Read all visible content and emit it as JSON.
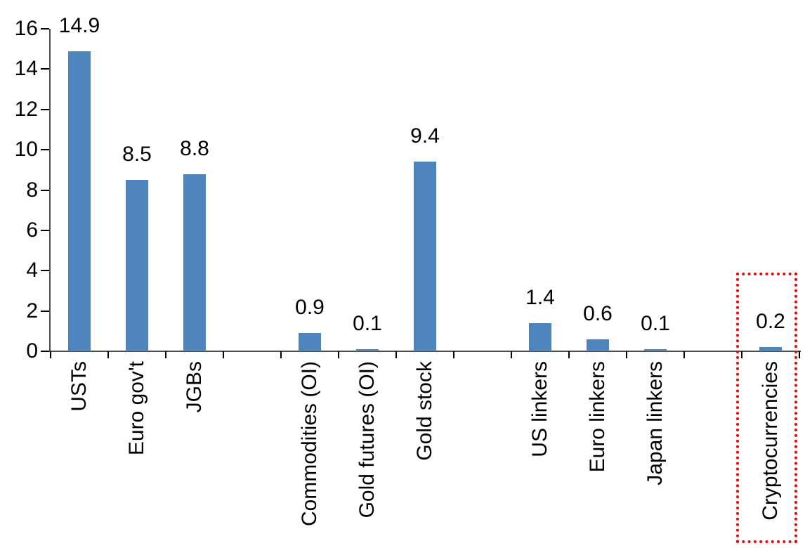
{
  "chart_data": {
    "type": "bar",
    "title": "",
    "xlabel": "",
    "ylabel": "",
    "categories": [
      "USTs",
      "Euro gov't",
      "JGBs",
      "",
      "Commodities (OI)",
      "Gold futures (OI)",
      "Gold stock",
      "",
      "US linkers",
      "Euro linkers",
      "Japan linkers",
      "",
      "Cryptocurrencies"
    ],
    "values": [
      14.9,
      8.5,
      8.8,
      null,
      0.9,
      0.1,
      9.4,
      null,
      1.4,
      0.6,
      0.1,
      null,
      0.2
    ],
    "value_labels": [
      "14.9",
      "8.5",
      "8.8",
      "",
      "0.9",
      "0.1",
      "9.4",
      "",
      "1.4",
      "0.6",
      "0.1",
      "",
      "0.2"
    ],
    "ylim": [
      0,
      16
    ],
    "yticks": [
      0,
      2,
      4,
      6,
      8,
      10,
      12,
      14,
      16
    ],
    "ytick_labels": [
      "0",
      "2",
      "4",
      "6",
      "8",
      "10",
      "12",
      "14",
      "16"
    ],
    "grid": false,
    "legend": null,
    "bar_color": "#4e85bc",
    "axis_color": "#4d4d4d",
    "tick_color": "#000000",
    "label_color": "#000000",
    "highlight": {
      "target_category": "Cryptocurrencies",
      "style": "dotted-box",
      "color": "#ff0000"
    }
  }
}
